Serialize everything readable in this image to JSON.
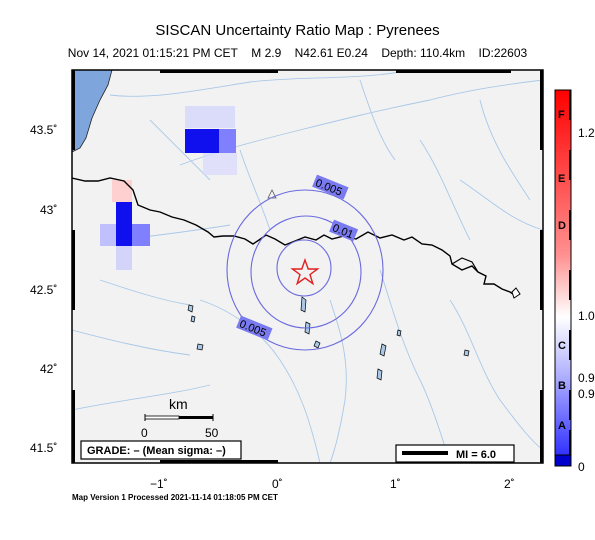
{
  "title": "SISCAN Uncertainty Ratio Map : Pyrenees",
  "subtitle": {
    "datetime": "Nov 14, 2021 01:15:21 PM CET",
    "magnitude": "M 2.9",
    "location": "N42.61 E0.24",
    "depth": "Depth: 110.4km",
    "id": "ID:22603"
  },
  "map": {
    "lat_ticks": [
      "43.5˚",
      "43˚",
      "42.5˚",
      "42˚",
      "41.5˚"
    ],
    "lon_ticks": [
      "−1˚",
      "0˚",
      "1˚",
      "2˚"
    ],
    "contour_labels": [
      "0.005",
      "0.01",
      "0.005"
    ],
    "grade_label": "GRADE: – (Mean sigma: –)",
    "scalebar": {
      "title": "km",
      "left": "0",
      "right": "50"
    },
    "mi_label": "MI = 6.0",
    "colors": {
      "land": "#f2f2f2",
      "sea": "#7ea6dc",
      "river": "#a9c8e8",
      "contour": "#6a6adf",
      "epicenter": "#e02020",
      "border": "#000000"
    }
  },
  "colorbar": {
    "letters": [
      "F",
      "E",
      "D",
      "C",
      "B",
      "A"
    ],
    "values": [
      "1.2",
      "1.0",
      "0.9",
      "0.9",
      "0"
    ],
    "top_color": "#ff0000",
    "mid_color": "#ffffff",
    "bottom_color": "#0000ff"
  },
  "footer": "Map Version 1 Processed 2021-11-14 01:18:05 PM CET"
}
